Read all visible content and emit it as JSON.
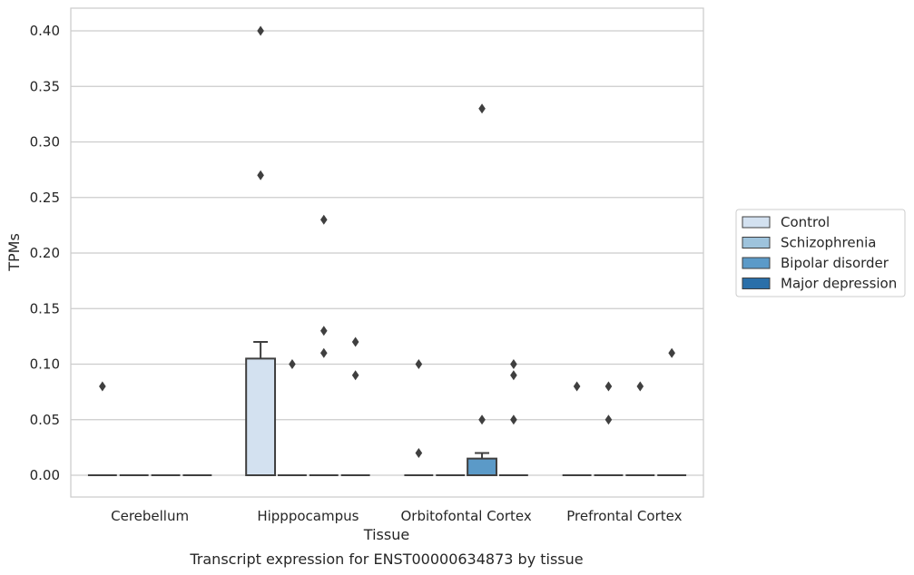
{
  "chart_data": {
    "type": "box",
    "title": "Transcript expression for ENST00000634873 by tissue",
    "xlabel": "Tissue",
    "ylabel": "TPMs",
    "ylim": [
      -0.02,
      0.42
    ],
    "yticks": [
      "0.00",
      "0.05",
      "0.10",
      "0.15",
      "0.20",
      "0.25",
      "0.30",
      "0.35",
      "0.40"
    ],
    "categories": [
      "Cerebellum",
      "Hipppocampus",
      "Orbitofontal Cortex",
      "Prefrontal Cortex"
    ],
    "grid": true,
    "legend_position": "right",
    "series": [
      {
        "name": "Control",
        "color": "#d3e1f0"
      },
      {
        "name": "Schizophrenia",
        "color": "#9ec3dc"
      },
      {
        "name": "Bipolar disorder",
        "color": "#5b9ac8"
      },
      {
        "name": "Major depression",
        "color": "#2a6fa9"
      }
    ],
    "boxes": [
      {
        "category": 0,
        "series": 0,
        "q1": 0,
        "median": 0,
        "q3": 0,
        "whisker_low": 0,
        "whisker_high": 0,
        "outliers": [
          0.08
        ]
      },
      {
        "category": 0,
        "series": 1,
        "q1": 0,
        "median": 0,
        "q3": 0,
        "whisker_low": 0,
        "whisker_high": 0,
        "outliers": []
      },
      {
        "category": 0,
        "series": 2,
        "q1": 0,
        "median": 0,
        "q3": 0,
        "whisker_low": 0,
        "whisker_high": 0,
        "outliers": []
      },
      {
        "category": 0,
        "series": 3,
        "q1": 0,
        "median": 0,
        "q3": 0,
        "whisker_low": 0,
        "whisker_high": 0,
        "outliers": []
      },
      {
        "category": 1,
        "series": 0,
        "q1": 0,
        "median": 0,
        "q3": 0.105,
        "whisker_low": 0,
        "whisker_high": 0.12,
        "outliers": [
          0.27,
          0.4
        ]
      },
      {
        "category": 1,
        "series": 1,
        "q1": 0,
        "median": 0,
        "q3": 0,
        "whisker_low": 0,
        "whisker_high": 0,
        "outliers": [
          0.1
        ]
      },
      {
        "category": 1,
        "series": 2,
        "q1": 0,
        "median": 0,
        "q3": 0,
        "whisker_low": 0,
        "whisker_high": 0,
        "outliers": [
          0.11,
          0.13,
          0.23
        ]
      },
      {
        "category": 1,
        "series": 3,
        "q1": 0,
        "median": 0,
        "q3": 0,
        "whisker_low": 0,
        "whisker_high": 0,
        "outliers": [
          0.09,
          0.12
        ]
      },
      {
        "category": 2,
        "series": 0,
        "q1": 0,
        "median": 0,
        "q3": 0,
        "whisker_low": 0,
        "whisker_high": 0,
        "outliers": [
          0.02,
          0.1
        ]
      },
      {
        "category": 2,
        "series": 1,
        "q1": 0,
        "median": 0,
        "q3": 0,
        "whisker_low": 0,
        "whisker_high": 0,
        "outliers": []
      },
      {
        "category": 2,
        "series": 2,
        "q1": 0,
        "median": 0,
        "q3": 0.015,
        "whisker_low": 0,
        "whisker_high": 0.02,
        "outliers": [
          0.05,
          0.33
        ]
      },
      {
        "category": 2,
        "series": 3,
        "q1": 0,
        "median": 0,
        "q3": 0,
        "whisker_low": 0,
        "whisker_high": 0,
        "outliers": [
          0.05,
          0.09,
          0.1
        ]
      },
      {
        "category": 3,
        "series": 0,
        "q1": 0,
        "median": 0,
        "q3": 0,
        "whisker_low": 0,
        "whisker_high": 0,
        "outliers": [
          0.08
        ]
      },
      {
        "category": 3,
        "series": 1,
        "q1": 0,
        "median": 0,
        "q3": 0,
        "whisker_low": 0,
        "whisker_high": 0,
        "outliers": [
          0.05,
          0.08
        ]
      },
      {
        "category": 3,
        "series": 2,
        "q1": 0,
        "median": 0,
        "q3": 0,
        "whisker_low": 0,
        "whisker_high": 0,
        "outliers": [
          0.08
        ]
      },
      {
        "category": 3,
        "series": 3,
        "q1": 0,
        "median": 0,
        "q3": 0,
        "whisker_low": 0,
        "whisker_high": 0,
        "outliers": [
          0.11
        ]
      }
    ]
  }
}
